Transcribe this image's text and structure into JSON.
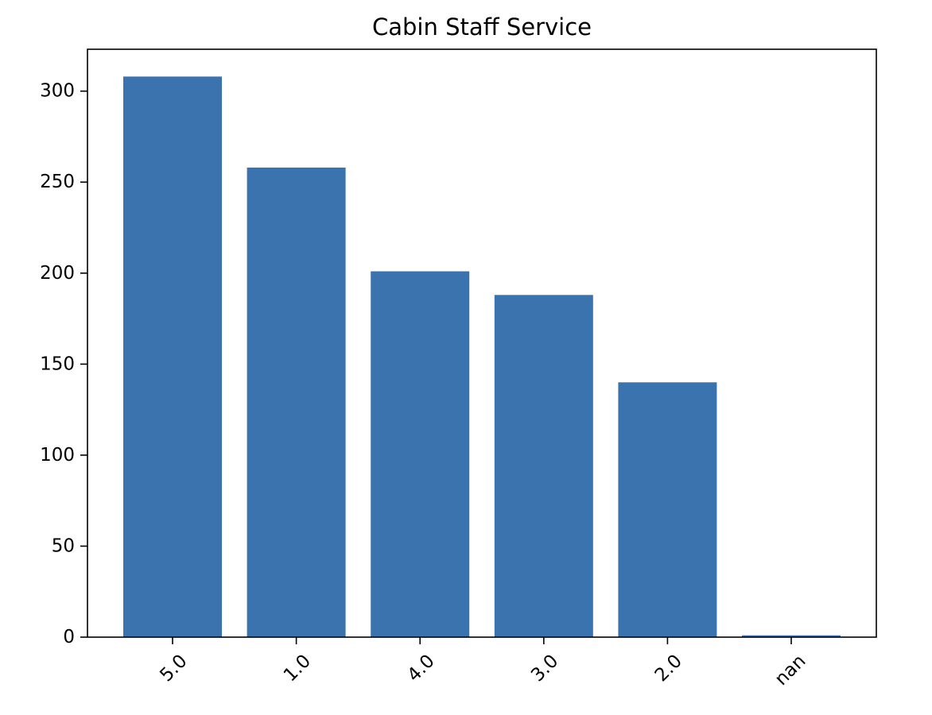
{
  "chart_data": {
    "type": "bar",
    "title": "Cabin Staff Service",
    "xlabel": "",
    "ylabel": "",
    "categories": [
      "5.0",
      "1.0",
      "4.0",
      "3.0",
      "2.0",
      "nan"
    ],
    "values": [
      308,
      258,
      201,
      188,
      140,
      1
    ],
    "ylim": [
      0,
      323
    ],
    "yticks": [
      0,
      50,
      100,
      150,
      200,
      250,
      300
    ],
    "grid": false,
    "legend": "none",
    "bar_color": "#3a73ad",
    "xtick_rotation": "45 degrees"
  }
}
